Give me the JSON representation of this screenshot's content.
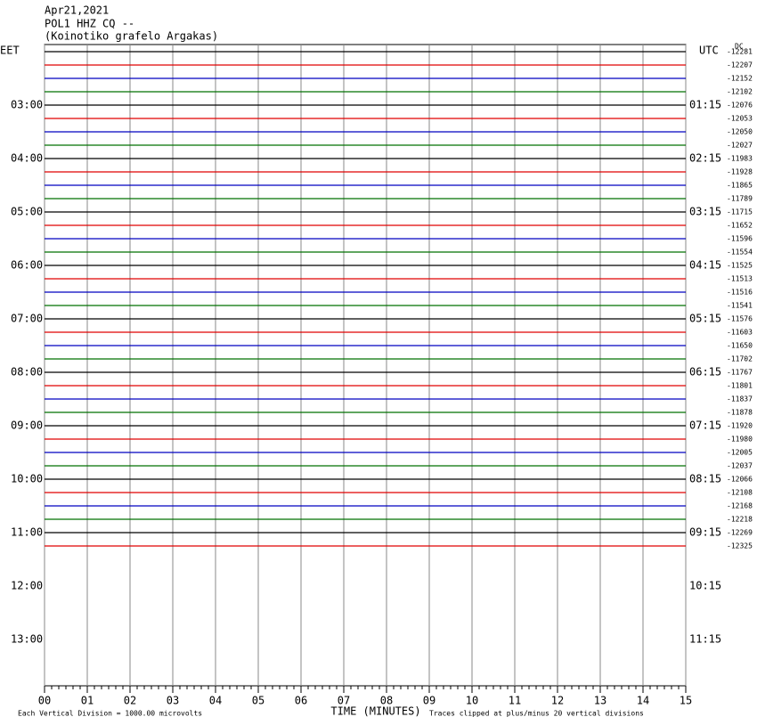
{
  "chart_data": {
    "type": "helicorder",
    "header": [
      "Apr21,2021",
      "POL1 HHZ CQ --",
      "(Koinotiko grafelo Argakas)"
    ],
    "left_title": "EET",
    "right_title": "UTC",
    "dc_label": "DC",
    "left_times": [
      "03:00",
      "04:00",
      "05:00",
      "06:00",
      "07:00",
      "08:00",
      "09:00",
      "10:00",
      "11:00",
      "12:00",
      "13:00"
    ],
    "right_times": [
      "01:15",
      "02:15",
      "03:15",
      "04:15",
      "05:15",
      "06:15",
      "07:15",
      "08:15",
      "09:15",
      "10:15",
      "11:15"
    ],
    "trace_labels": [
      "-12281",
      "-12207",
      "-12152",
      "-12102",
      "-12076",
      "-12053",
      "-12050",
      "-12027",
      "-11983",
      "-11928",
      "-11865",
      "-11789",
      "-11715",
      "-11652",
      "-11596",
      "-11554",
      "-11525",
      "-11513",
      "-11516",
      "-11541",
      "-11576",
      "-11603",
      "-11650",
      "-11702",
      "-11767",
      "-11801",
      "-11837",
      "-11878",
      "-11920",
      "-11980",
      "-12005",
      "-12037",
      "-12066",
      "-12108",
      "-12168",
      "-12218",
      "-12269",
      "-12325"
    ],
    "trace_colors": [
      "#000000",
      "#e00000",
      "#0000c0",
      "#007000"
    ],
    "xlim": [
      0,
      15
    ],
    "xticks": [
      {
        "value": 0,
        "label": "00"
      },
      {
        "value": 1,
        "label": "01"
      },
      {
        "value": 2,
        "label": "02"
      },
      {
        "value": 3,
        "label": "03"
      },
      {
        "value": 4,
        "label": "04"
      },
      {
        "value": 5,
        "label": "05"
      },
      {
        "value": 6,
        "label": "06"
      },
      {
        "value": 7,
        "label": "07"
      },
      {
        "value": 8,
        "label": "08"
      },
      {
        "value": 9,
        "label": "09"
      },
      {
        "value": 10,
        "label": "10"
      },
      {
        "value": 11,
        "label": "11"
      },
      {
        "value": 12,
        "label": "12"
      },
      {
        "value": 13,
        "label": "13"
      },
      {
        "value": 14,
        "label": "14"
      },
      {
        "value": 15,
        "label": "15"
      }
    ],
    "x_label": "TIME (MINUTES)",
    "scale_note": "Each Vertical Division = 1000.00 microvolts",
    "clip_note": "Traces clipped at plus/minus 20 vertical divisions"
  }
}
